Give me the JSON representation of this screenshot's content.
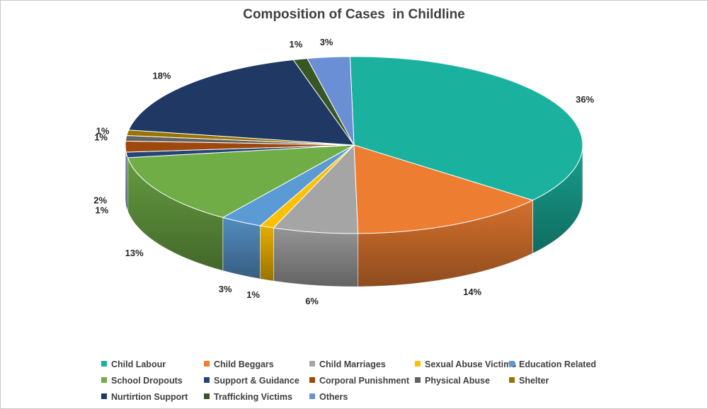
{
  "chart_data": {
    "type": "pie",
    "title": "Composition of Cases  in Childline",
    "legend_position": "bottom",
    "slices": [
      {
        "name": "Child Labour",
        "value": 36,
        "label": "36%",
        "color": "#1AB29F"
      },
      {
        "name": "Child Beggars",
        "value": 14,
        "label": "14%",
        "color": "#ED7D31"
      },
      {
        "name": "Child Marriages",
        "value": 6,
        "label": "6%",
        "color": "#A5A5A5"
      },
      {
        "name": "Sexual Abuse Victims",
        "value": 1,
        "label": "1%",
        "color": "#FFC000"
      },
      {
        "name": "Education Related",
        "value": 3,
        "label": "3%",
        "color": "#5B9BD5"
      },
      {
        "name": "School Dropouts",
        "value": 13,
        "label": "13%",
        "color": "#70AD47"
      },
      {
        "name": "Support & Guidance",
        "value": 1,
        "label": "1%",
        "color": "#264478"
      },
      {
        "name": "Corporal Punishment",
        "value": 2,
        "label": "2%",
        "color": "#9E480E"
      },
      {
        "name": "Physical Abuse",
        "value": 1,
        "label": "1%",
        "color": "#636363"
      },
      {
        "name": "Shelter",
        "value": 1,
        "label": "1%",
        "color": "#997300"
      },
      {
        "name": "Nurtirtion Support",
        "value": 18,
        "label": "18%",
        "color": "#1F3864"
      },
      {
        "name": "Trafficking Victims",
        "value": 1,
        "label": "1%",
        "color": "#375623"
      },
      {
        "name": "Others",
        "value": 3,
        "label": "3%",
        "color": "#6A8FD4"
      }
    ]
  }
}
